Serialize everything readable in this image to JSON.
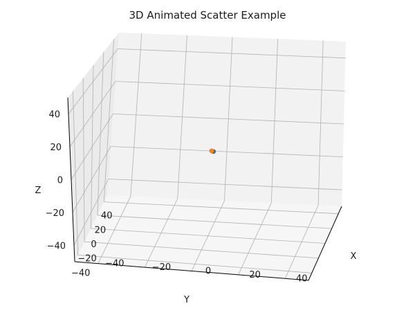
{
  "chart_data": {
    "type": "scatter",
    "title": "3D Animated Scatter Example",
    "xlabel": "X",
    "ylabel": "Y",
    "zlabel": "Z",
    "xlim": [
      -50,
      50
    ],
    "ylim": [
      -50,
      50
    ],
    "zlim": [
      -50,
      50
    ],
    "x_ticks": [
      "−40",
      "−20",
      "0",
      "20",
      "40"
    ],
    "y_ticks": [
      "−40",
      "−20",
      "0",
      "20",
      "40"
    ],
    "z_ticks": [
      "−40",
      "−20",
      "0",
      "20",
      "40"
    ],
    "grid": true,
    "series": [
      {
        "color": "#1f77b4",
        "points": [
          [
            -2,
            2,
            0
          ]
        ]
      },
      {
        "color": "#ff7f0e",
        "points": [
          [
            -1,
            1,
            0
          ]
        ]
      }
    ]
  }
}
